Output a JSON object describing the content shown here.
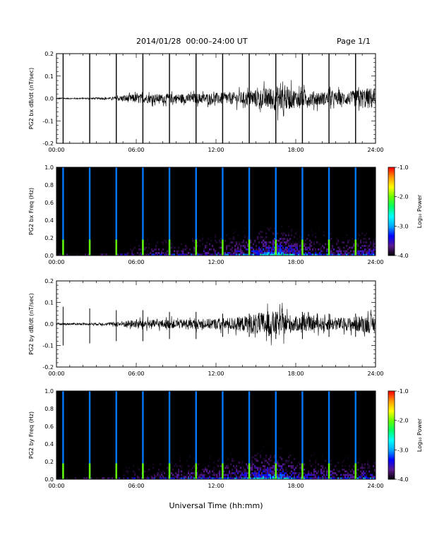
{
  "header": {
    "title": "2014/01/28  00:00–24:00 UT",
    "page": "Page 1/1"
  },
  "x_axis_label": "Universal Time (hh:mm)",
  "colorbar": {
    "label": "Log₁₀ Power",
    "ticks": [
      "-1.0",
      "-2.0",
      "-3.0",
      "-4.0"
    ],
    "range": [
      -4.0,
      -1.0
    ],
    "colors": [
      "#000000",
      "#5a1a8c",
      "#0000ff",
      "#00aaff",
      "#00ffff",
      "#00ff66",
      "#66ff00",
      "#ffff00",
      "#ff9900",
      "#ff0000"
    ]
  },
  "chart_data": [
    {
      "type": "line",
      "panel": "PG2 bx dB/dt",
      "ylabel": "PG2 bx dB/dt (nT/sec)",
      "xlim": [
        "00:00",
        "24:00"
      ],
      "xticks": [
        "00:00",
        "06:00",
        "12:00",
        "18:00",
        "24:00"
      ],
      "ylim": [
        -0.2,
        0.2
      ],
      "yticks": [
        "-0.2",
        "-0.1",
        "0.0",
        "0.1",
        "0.2"
      ],
      "spike_times_hours": [
        0.5,
        2.5,
        4.5,
        6.5,
        8.5,
        10.5,
        12.5,
        14.5,
        16.5,
        18.5,
        20.5,
        22.5
      ],
      "envelope": {
        "hours": [
          0,
          2,
          4,
          5,
          6,
          8,
          10,
          12,
          14,
          15,
          16,
          17,
          18,
          20,
          22,
          23,
          24
        ],
        "amplitude": [
          0.003,
          0.003,
          0.005,
          0.015,
          0.02,
          0.02,
          0.022,
          0.025,
          0.03,
          0.04,
          0.05,
          0.06,
          0.04,
          0.03,
          0.03,
          0.045,
          0.05
        ]
      },
      "events": [
        {
          "hour": 17.1,
          "value": 0.12
        }
      ]
    },
    {
      "type": "heatmap",
      "panel": "PG2 bx Freq",
      "ylabel": "PG2 bx Freq (Hz)",
      "xlim": [
        "00:00",
        "24:00"
      ],
      "xticks": [
        "00:00",
        "06:00",
        "12:00",
        "18:00",
        "24:00"
      ],
      "ylim": [
        0.0,
        1.0
      ],
      "yticks": [
        "0.0",
        "0.2",
        "0.4",
        "0.6",
        "0.8",
        "1.0"
      ],
      "zlim": [
        -4.0,
        -1.0
      ],
      "spike_times_hours": [
        0.5,
        2.5,
        4.5,
        6.5,
        8.5,
        10.5,
        12.5,
        14.5,
        16.5,
        18.5,
        20.5,
        22.5
      ],
      "activity_hours": [
        0,
        2,
        4,
        5,
        6,
        8,
        10,
        12,
        14,
        15,
        16,
        17,
        18,
        20,
        22,
        23,
        24
      ],
      "activity_level": [
        0.05,
        0.05,
        0.1,
        0.2,
        0.3,
        0.35,
        0.4,
        0.45,
        0.55,
        0.7,
        0.85,
        0.9,
        0.65,
        0.5,
        0.45,
        0.55,
        0.6
      ]
    },
    {
      "type": "line",
      "panel": "PG2 by dB/dt",
      "ylabel": "PG2 by dB/dt (nT/sec)",
      "xlim": [
        "00:00",
        "24:00"
      ],
      "xticks": [
        "00:00",
        "06:00",
        "12:00",
        "18:00",
        "24:00"
      ],
      "ylim": [
        -0.2,
        0.2
      ],
      "yticks": [
        "-0.2",
        "-0.1",
        "0.0",
        "0.1",
        "0.2"
      ],
      "spike_times_hours": [
        0.5,
        2.5,
        4.5,
        6.5,
        8.5,
        10.5,
        12.5,
        14.5,
        16.5,
        18.5,
        20.5,
        22.5
      ],
      "spike_amplitudes": [
        0.1,
        0.09,
        0.08,
        0.08,
        0.07,
        0.07,
        0.06,
        0.06,
        0.07,
        0.07,
        0.06,
        0.06
      ],
      "envelope": {
        "hours": [
          0,
          2,
          4,
          5,
          6,
          8,
          10,
          12,
          14,
          15,
          16,
          17,
          18,
          20,
          22,
          23,
          24
        ],
        "amplitude": [
          0.005,
          0.005,
          0.007,
          0.015,
          0.02,
          0.02,
          0.022,
          0.025,
          0.035,
          0.05,
          0.06,
          0.055,
          0.035,
          0.03,
          0.03,
          0.04,
          0.045
        ]
      }
    },
    {
      "type": "heatmap",
      "panel": "PG2 by Freq",
      "ylabel": "PG2 by Freq (Hz)",
      "xlim": [
        "00:00",
        "24:00"
      ],
      "xticks": [
        "00:00",
        "06:00",
        "12:00",
        "18:00",
        "24:00"
      ],
      "ylim": [
        0.0,
        1.0
      ],
      "yticks": [
        "0.0",
        "0.2",
        "0.4",
        "0.6",
        "0.8",
        "1.0"
      ],
      "zlim": [
        -4.0,
        -1.0
      ],
      "spike_times_hours": [
        0.5,
        2.5,
        4.5,
        6.5,
        8.5,
        10.5,
        12.5,
        14.5,
        16.5,
        18.5,
        20.5,
        22.5
      ],
      "activity_hours": [
        0,
        2,
        4,
        5,
        6,
        8,
        10,
        12,
        14,
        15,
        16,
        17,
        18,
        20,
        22,
        23,
        24
      ],
      "activity_level": [
        0.05,
        0.05,
        0.1,
        0.2,
        0.3,
        0.35,
        0.45,
        0.5,
        0.6,
        0.75,
        0.85,
        0.8,
        0.6,
        0.5,
        0.45,
        0.55,
        0.6
      ]
    }
  ]
}
